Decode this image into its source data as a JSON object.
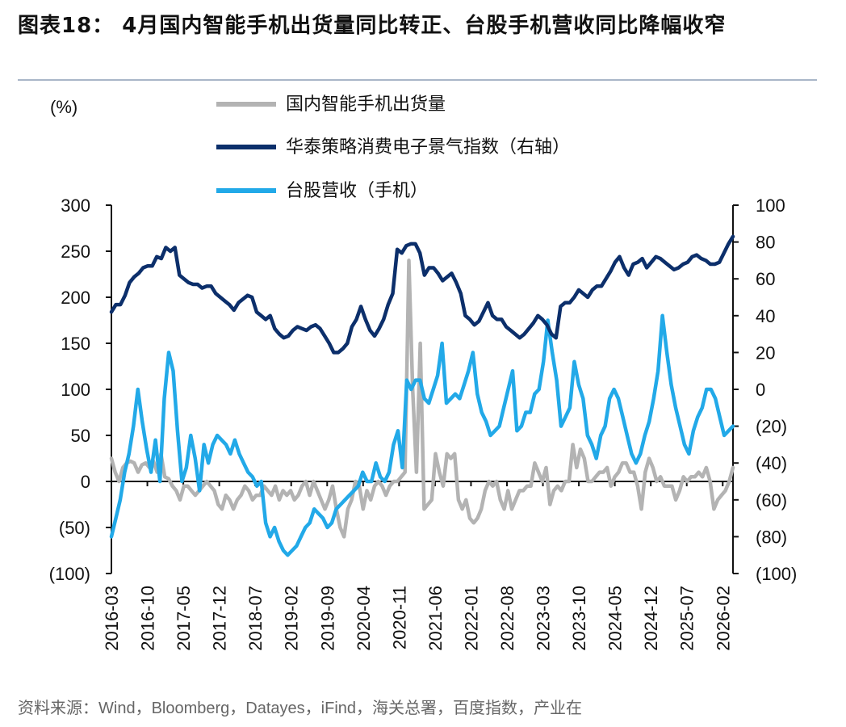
{
  "title": "图表18：  4月国内智能手机出货量同比转正、台股手机营收同比降幅收窄",
  "source": "资料来源：Wind，Bloomberg，Datayes，iFind，海关总署，百度指数，产业在",
  "chart_data": {
    "type": "line",
    "left_unit": "(%)",
    "y_left": {
      "min": -100,
      "max": 300,
      "ticks": [
        "(100)",
        "(50)",
        "0",
        "50",
        "100",
        "150",
        "200",
        "250",
        "300"
      ]
    },
    "y_right": {
      "min": -100,
      "max": 100,
      "ticks": [
        "(100)",
        "(80)",
        "(60)",
        "(40)",
        "(20)",
        "0",
        "20",
        "40",
        "60",
        "80",
        "100"
      ]
    },
    "x_tick_labels": [
      "2016-03",
      "2016-10",
      "2017-05",
      "2017-12",
      "2018-07",
      "2019-02",
      "2019-09",
      "2020-04",
      "2020-11",
      "2021-06",
      "2022-01",
      "2022-08",
      "2023-03",
      "2023-10",
      "2024-05",
      "2024-12",
      "2025-07",
      "2026-02"
    ],
    "x_start": "2016-03",
    "x_end": "2026-04",
    "colors": {
      "shipments": "#b3b3b3",
      "index": "#0c2f6b",
      "revenue": "#22a9e8"
    },
    "series": [
      {
        "name": "国内智能手机出货量",
        "axis": "left",
        "color": "#b3b3b3",
        "values": [
          25,
          10,
          0,
          15,
          20,
          22,
          20,
          10,
          18,
          20,
          15,
          22,
          10,
          30,
          5,
          3,
          -5,
          -10,
          -20,
          -5,
          -5,
          -10,
          -15,
          -10,
          -5,
          0,
          -5,
          -10,
          -25,
          -30,
          -15,
          -20,
          -30,
          -20,
          -15,
          -5,
          -10,
          -20,
          -15,
          -15,
          -5,
          -10,
          -15,
          -5,
          -20,
          -10,
          -15,
          -10,
          -20,
          -15,
          -5,
          0,
          -15,
          0,
          -10,
          -20,
          -30,
          -20,
          -5,
          -30,
          -50,
          -60,
          -30,
          -20,
          0,
          -5,
          -30,
          -10,
          -20,
          -5,
          0,
          -5,
          -15,
          -5,
          0,
          0,
          5,
          10,
          240,
          100,
          10,
          150,
          -30,
          -25,
          -20,
          30,
          10,
          -5,
          30,
          25,
          30,
          -20,
          -30,
          -20,
          -40,
          -45,
          -40,
          -30,
          -10,
          0,
          -5,
          0,
          -20,
          -30,
          -10,
          -30,
          -20,
          -10,
          -10,
          -5,
          -5,
          20,
          10,
          0,
          15,
          -25,
          -10,
          -5,
          -10,
          0,
          0,
          40,
          15,
          35,
          25,
          0,
          0,
          5,
          10,
          10,
          15,
          -5,
          5,
          10,
          20,
          20,
          10,
          10,
          -5,
          -30,
          10,
          25,
          15,
          0,
          5,
          -5,
          -5,
          -5,
          -20,
          -10,
          5,
          0,
          5,
          5,
          10,
          5,
          15,
          0,
          -30,
          -20,
          -15,
          -10,
          0,
          15
        ]
      },
      {
        "name": "华泰策略消费电子景气指数（右轴）",
        "axis": "right",
        "color": "#0c2f6b",
        "values": [
          42,
          46,
          46,
          51,
          58,
          61,
          63,
          66,
          67,
          67,
          72,
          71,
          77,
          75,
          77,
          62,
          60,
          58,
          57,
          57,
          55,
          56,
          56,
          52,
          50,
          48,
          46,
          43,
          47,
          49,
          51,
          50,
          42,
          40,
          38,
          40,
          33,
          30,
          28,
          29,
          32,
          34,
          33,
          32,
          34,
          35,
          33,
          29,
          25,
          20,
          20,
          22,
          25,
          34,
          38,
          45,
          38,
          32,
          29,
          33,
          38,
          46,
          52,
          76,
          74,
          78,
          79,
          79,
          74,
          62,
          66,
          66,
          63,
          59,
          61,
          63,
          58,
          52,
          40,
          38,
          35,
          37,
          42,
          47,
          40,
          38,
          38,
          34,
          32,
          30,
          28,
          30,
          33,
          36,
          40,
          38,
          35,
          30,
          28,
          45,
          47,
          47,
          50,
          54,
          52,
          50,
          54,
          56,
          56,
          60,
          64,
          69,
          72,
          66,
          62,
          68,
          69,
          71,
          66,
          69,
          72,
          71,
          69,
          67,
          65,
          66,
          68,
          69,
          72,
          73,
          71,
          70,
          68,
          68,
          69,
          74,
          79,
          83
        ]
      },
      {
        "name": "台股营收（手机）",
        "axis": "left",
        "color": "#22a9e8",
        "values": [
          -60,
          -40,
          -20,
          10,
          30,
          60,
          100,
          65,
          35,
          10,
          45,
          0,
          90,
          140,
          120,
          55,
          0,
          15,
          50,
          25,
          -10,
          40,
          20,
          40,
          50,
          45,
          40,
          30,
          45,
          30,
          20,
          10,
          5,
          -5,
          0,
          -45,
          -60,
          -50,
          -65,
          -75,
          -80,
          -75,
          -70,
          -60,
          -50,
          -45,
          -30,
          -35,
          -40,
          -50,
          -45,
          -30,
          -25,
          -20,
          -15,
          -10,
          -5,
          10,
          0,
          0,
          20,
          5,
          0,
          10,
          40,
          55,
          15,
          110,
          100,
          110,
          110,
          90,
          85,
          100,
          115,
          150,
          85,
          90,
          95,
          90,
          105,
          120,
          140,
          95,
          75,
          65,
          50,
          55,
          60,
          80,
          100,
          120,
          55,
          60,
          75,
          75,
          95,
          100,
          130,
          175,
          140,
          110,
          60,
          70,
          80,
          130,
          105,
          90,
          50,
          40,
          25,
          50,
          60,
          90,
          100,
          90,
          70,
          50,
          30,
          20,
          30,
          50,
          65,
          90,
          120,
          180,
          140,
          105,
          80,
          60,
          40,
          30,
          55,
          70,
          80,
          100,
          100,
          90,
          70,
          50,
          55,
          60
        ]
      }
    ]
  }
}
